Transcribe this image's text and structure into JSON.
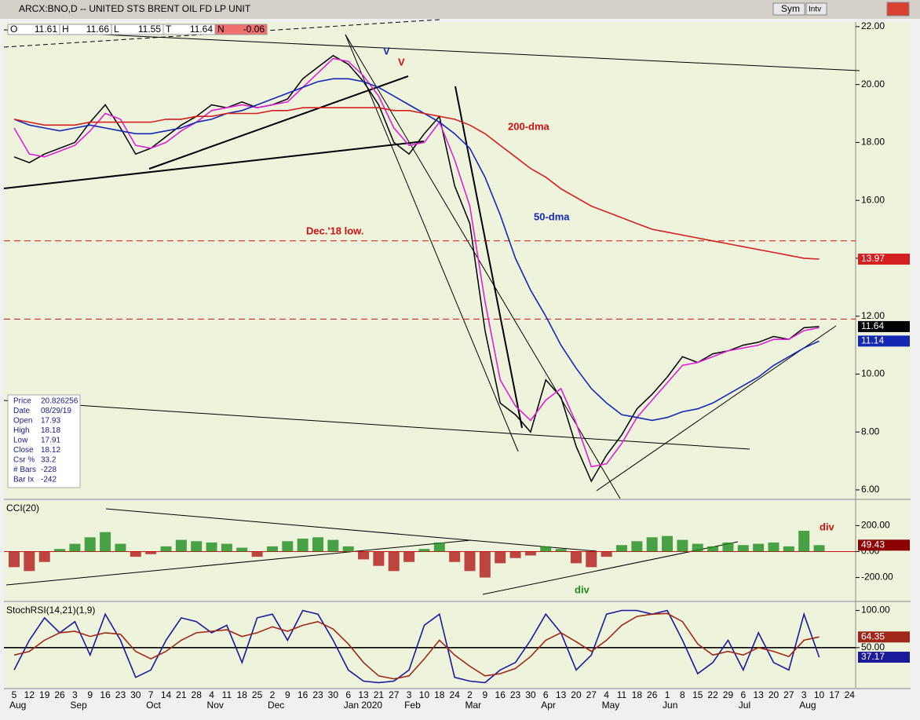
{
  "window": {
    "title": "ARCX:BNO,D -- UNITED STS BRENT OIL FD LP UNIT",
    "buttons": [
      "Sym",
      "Intv"
    ]
  },
  "quote": [
    {
      "label": "O",
      "value": "11.61"
    },
    {
      "label": "H",
      "value": "11.66"
    },
    {
      "label": "L",
      "value": "11.55"
    },
    {
      "label": "T",
      "value": "11.64"
    },
    {
      "label": "N",
      "value": "-0.06"
    }
  ],
  "info_box": [
    [
      "Price",
      "20.826256"
    ],
    [
      "Date",
      "08/29/19"
    ],
    [
      "Open",
      "17.93"
    ],
    [
      "High",
      "18.18"
    ],
    [
      "Low",
      "17.91"
    ],
    [
      "Close",
      "18.12"
    ],
    [
      "Csr %",
      "33.2"
    ],
    [
      "# Bars",
      "-228"
    ],
    [
      "Bar Ix",
      "-242"
    ]
  ],
  "annotations": {
    "dma200": "200-dma",
    "dma50": "50-dma",
    "dec18": "Dec.'18 low.",
    "v_blue": "V",
    "v_red": "V",
    "div_green": "div",
    "div_red": "div"
  },
  "chart_data": [
    {
      "type": "line",
      "categories": [
        "5",
        "12",
        "19",
        "26",
        "3",
        "9",
        "16",
        "23",
        "30",
        "7",
        "14",
        "21",
        "28",
        "4",
        "11",
        "18",
        "25",
        "2",
        "9",
        "16",
        "23",
        "30",
        "6",
        "13",
        "21",
        "27",
        "3",
        "10",
        "18",
        "24",
        "2",
        "9",
        "16",
        "23",
        "30",
        "6",
        "13",
        "20",
        "27",
        "4",
        "11",
        "18",
        "26",
        "1",
        "8",
        "15",
        "22",
        "29",
        "6",
        "13",
        "20",
        "27",
        "3",
        "10",
        "17",
        "24"
      ],
      "month_labels": [
        "Aug",
        null,
        null,
        null,
        "Sep",
        null,
        null,
        null,
        null,
        "Oct",
        null,
        null,
        null,
        "Nov",
        null,
        null,
        null,
        "Dec",
        null,
        null,
        null,
        null,
        "Jan 2020",
        null,
        null,
        null,
        "Feb",
        null,
        null,
        null,
        "Mar",
        null,
        null,
        null,
        null,
        "Apr",
        null,
        null,
        null,
        "May",
        null,
        null,
        null,
        "Jun",
        null,
        null,
        null,
        null,
        "Jul",
        null,
        null,
        null,
        "Aug",
        null,
        null,
        null
      ],
      "ylim": [
        5.7,
        22.16
      ],
      "yticks": [
        {
          "value": 6,
          "label": "6.00"
        },
        {
          "value": 8,
          "label": "8.00"
        },
        {
          "value": 10,
          "label": "10.00"
        },
        {
          "value": 12,
          "label": "12.00"
        },
        {
          "value": 14,
          "label": "14.00"
        },
        {
          "value": 16,
          "label": "16.00"
        },
        {
          "value": 18,
          "label": "18.00"
        },
        {
          "value": 20,
          "label": "20.00"
        },
        {
          "value": 22,
          "label": "22.00"
        }
      ],
      "hlines": [
        {
          "value": 14.6,
          "color": "#d01010"
        },
        {
          "value": 11.9,
          "color": "#d01010"
        }
      ],
      "series": [
        {
          "color": "#000000",
          "last_box": true,
          "values": [
            17.5,
            17.3,
            17.6,
            17.8,
            18.0,
            18.7,
            19.3,
            18.5,
            17.6,
            17.8,
            18.2,
            18.6,
            18.9,
            19.3,
            19.2,
            19.4,
            19.2,
            19.3,
            19.5,
            20.2,
            20.6,
            21.0,
            20.7,
            20.1,
            19.3,
            18.0,
            17.6,
            18.3,
            18.9,
            16.5,
            15.2,
            11.5,
            9.0,
            8.6,
            8.0,
            9.8,
            9.2,
            7.5,
            6.3,
            7.2,
            7.9,
            8.8,
            9.3,
            9.9,
            10.6,
            10.4,
            10.7,
            10.8,
            11.0,
            11.1,
            11.3,
            11.2,
            11.6,
            11.64,
            null,
            null
          ]
        },
        {
          "color": "#e020d8",
          "values": [
            18.5,
            17.6,
            17.5,
            17.7,
            17.9,
            18.4,
            19.0,
            18.8,
            17.9,
            17.8,
            18.0,
            18.4,
            18.7,
            19.1,
            19.2,
            19.3,
            19.2,
            19.3,
            19.4,
            19.9,
            20.4,
            20.9,
            20.8,
            20.3,
            19.6,
            18.5,
            17.9,
            18.0,
            18.7,
            17.4,
            15.8,
            12.5,
            9.8,
            8.9,
            8.4,
            9.1,
            9.5,
            8.3,
            6.8,
            6.9,
            7.6,
            8.5,
            9.1,
            9.7,
            10.3,
            10.4,
            10.6,
            10.8,
            10.9,
            11.0,
            11.2,
            11.2,
            11.5,
            11.6,
            null,
            null
          ]
        },
        {
          "name": "50-dma",
          "color": "#1428b4",
          "last_box": true,
          "values": [
            18.8,
            18.6,
            18.5,
            18.4,
            18.5,
            18.6,
            18.5,
            18.4,
            18.3,
            18.3,
            18.4,
            18.5,
            18.7,
            18.8,
            19.0,
            19.1,
            19.3,
            19.5,
            19.7,
            19.9,
            20.1,
            20.2,
            20.2,
            20.1,
            19.9,
            19.6,
            19.3,
            19.0,
            18.7,
            18.3,
            17.8,
            16.8,
            15.5,
            14.0,
            12.9,
            12.0,
            11.0,
            10.2,
            9.5,
            9.0,
            8.6,
            8.5,
            8.4,
            8.5,
            8.7,
            8.8,
            9.0,
            9.3,
            9.6,
            9.9,
            10.3,
            10.6,
            10.9,
            11.14,
            null,
            null
          ]
        },
        {
          "name": "200-dma",
          "color": "#d42020",
          "last_box": true,
          "values": [
            18.8,
            18.7,
            18.6,
            18.6,
            18.6,
            18.7,
            18.7,
            18.7,
            18.7,
            18.7,
            18.8,
            18.8,
            18.9,
            18.9,
            19.0,
            19.0,
            19.0,
            19.1,
            19.1,
            19.2,
            19.2,
            19.2,
            19.2,
            19.2,
            19.2,
            19.1,
            19.1,
            19.0,
            18.9,
            18.8,
            18.6,
            18.3,
            17.9,
            17.5,
            17.1,
            16.8,
            16.4,
            16.1,
            15.8,
            15.6,
            15.4,
            15.2,
            15.0,
            14.9,
            14.8,
            14.7,
            14.6,
            14.5,
            14.4,
            14.3,
            14.2,
            14.1,
            14.0,
            13.97,
            null,
            null
          ]
        }
      ]
    },
    {
      "type": "bar",
      "title": "CCI(20)",
      "ylim": [
        -378,
        390
      ],
      "yticks": [
        {
          "value": -200,
          "label": "-200.00"
        },
        {
          "value": 0,
          "label": "0.00"
        },
        {
          "value": 200,
          "label": "200.00"
        }
      ],
      "hlines": [
        {
          "value": 0,
          "color": "#d01010"
        }
      ],
      "colors": {
        "positive": "#1e8c1e",
        "negative": "#b01818",
        "box": "#8b0000"
      },
      "values": [
        -120,
        -150,
        -80,
        20,
        60,
        110,
        150,
        60,
        -40,
        -20,
        40,
        90,
        80,
        70,
        60,
        30,
        -40,
        40,
        80,
        100,
        110,
        90,
        40,
        -60,
        -110,
        -150,
        -80,
        20,
        70,
        -80,
        -150,
        -200,
        -90,
        -50,
        -30,
        40,
        20,
        -90,
        -120,
        -40,
        50,
        80,
        110,
        120,
        90,
        60,
        40,
        70,
        50,
        60,
        70,
        40,
        160,
        49.43,
        null,
        null
      ]
    },
    {
      "type": "line",
      "title": "StochRSI(14,21)(1,9)",
      "ylim": [
        -4,
        110
      ],
      "yticks": [
        {
          "value": 50,
          "label": "50.00"
        },
        {
          "value": 100,
          "label": "100.00"
        }
      ],
      "hlines": [
        {
          "value": 50,
          "color": "#000000"
        }
      ],
      "series": [
        {
          "color": "#1a1a9a",
          "last_box": true,
          "values": [
            20,
            60,
            90,
            70,
            85,
            40,
            95,
            60,
            10,
            20,
            60,
            90,
            85,
            70,
            80,
            30,
            90,
            95,
            60,
            100,
            95,
            60,
            20,
            5,
            3,
            5,
            20,
            80,
            95,
            10,
            5,
            3,
            20,
            30,
            60,
            95,
            70,
            20,
            40,
            95,
            100,
            100,
            95,
            100,
            60,
            15,
            30,
            60,
            20,
            70,
            30,
            20,
            95,
            37.17,
            null,
            null
          ]
        },
        {
          "color": "#a02818",
          "last_box": true,
          "values": [
            40,
            45,
            60,
            70,
            72,
            65,
            70,
            68,
            45,
            35,
            45,
            60,
            70,
            72,
            74,
            65,
            70,
            78,
            72,
            80,
            85,
            75,
            55,
            30,
            12,
            8,
            12,
            35,
            60,
            40,
            25,
            12,
            15,
            22,
            38,
            60,
            70,
            58,
            45,
            60,
            80,
            92,
            95,
            96,
            85,
            55,
            40,
            45,
            40,
            50,
            45,
            38,
            60,
            64.35,
            null,
            null
          ]
        }
      ]
    }
  ]
}
